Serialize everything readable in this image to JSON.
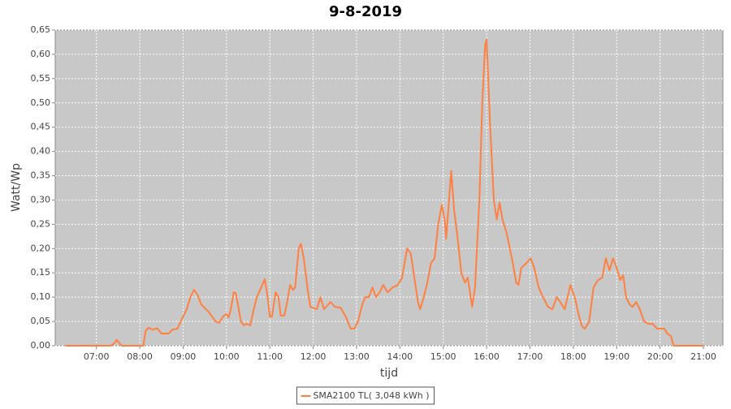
{
  "chart_data": {
    "type": "line",
    "title": "9-8-2019",
    "x_label": "tijd",
    "y_label": "Watt/Wp",
    "x": [
      "06:17",
      "07:20",
      "07:25",
      "07:28",
      "07:32",
      "07:35",
      "08:05",
      "08:08",
      "08:12",
      "08:18",
      "08:24",
      "08:30",
      "08:40",
      "08:45",
      "08:52",
      "09:00",
      "09:05",
      "09:10",
      "09:15",
      "09:20",
      "09:25",
      "09:35",
      "09:45",
      "09:50",
      "09:55",
      "10:00",
      "10:03",
      "10:06",
      "10:10",
      "10:13",
      "10:17",
      "10:20",
      "10:24",
      "10:28",
      "10:33",
      "10:37",
      "10:42",
      "10:48",
      "10:53",
      "10:57",
      "11:00",
      "11:03",
      "11:08",
      "11:12",
      "11:15",
      "11:20",
      "11:24",
      "11:28",
      "11:32",
      "11:35",
      "11:40",
      "11:43",
      "11:47",
      "11:52",
      "11:56",
      "12:00",
      "12:05",
      "12:10",
      "12:15",
      "12:18",
      "12:24",
      "12:30",
      "12:38",
      "12:45",
      "12:52",
      "12:57",
      "13:02",
      "13:08",
      "13:12",
      "13:17",
      "13:22",
      "13:27",
      "13:32",
      "13:37",
      "13:43",
      "13:50",
      "13:57",
      "14:03",
      "14:10",
      "14:15",
      "14:20",
      "14:25",
      "14:28",
      "14:33",
      "14:38",
      "14:43",
      "14:48",
      "14:53",
      "14:58",
      "15:02",
      "15:04",
      "15:08",
      "15:11",
      "15:15",
      "15:20",
      "15:25",
      "15:30",
      "15:34",
      "15:40",
      "15:44",
      "15:50",
      "15:54",
      "15:58",
      "16:00",
      "16:05",
      "16:10",
      "16:14",
      "16:18",
      "16:22",
      "16:28",
      "16:35",
      "16:41",
      "16:44",
      "16:48",
      "16:55",
      "17:01",
      "17:06",
      "17:12",
      "17:18",
      "17:25",
      "17:31",
      "17:37",
      "17:42",
      "17:48",
      "17:56",
      "18:02",
      "18:08",
      "18:12",
      "18:16",
      "18:22",
      "18:28",
      "18:34",
      "18:40",
      "18:45",
      "18:50",
      "18:55",
      "19:00",
      "19:05",
      "19:09",
      "19:13",
      "19:18",
      "19:22",
      "19:27",
      "19:32",
      "19:38",
      "19:44",
      "19:50",
      "19:56",
      "20:06",
      "20:10",
      "20:15",
      "20:19",
      "21:00"
    ],
    "series": [
      {
        "name": "SMA2100 TL( 3,048 kWh )",
        "color": "#ff8040",
        "values": [
          0,
          0,
          0.005,
          0.012,
          0.005,
          0,
          0,
          0.03,
          0.037,
          0.033,
          0.036,
          0.025,
          0.025,
          0.033,
          0.035,
          0.06,
          0.075,
          0.1,
          0.115,
          0.105,
          0.085,
          0.07,
          0.05,
          0.047,
          0.06,
          0.065,
          0.058,
          0.075,
          0.11,
          0.108,
          0.075,
          0.05,
          0.042,
          0.045,
          0.042,
          0.07,
          0.1,
          0.12,
          0.137,
          0.1,
          0.06,
          0.06,
          0.11,
          0.1,
          0.062,
          0.062,
          0.09,
          0.125,
          0.115,
          0.12,
          0.2,
          0.21,
          0.18,
          0.12,
          0.08,
          0.078,
          0.075,
          0.1,
          0.075,
          0.08,
          0.09,
          0.08,
          0.078,
          0.06,
          0.035,
          0.035,
          0.05,
          0.085,
          0.1,
          0.1,
          0.12,
          0.1,
          0.11,
          0.125,
          0.11,
          0.12,
          0.125,
          0.14,
          0.2,
          0.19,
          0.14,
          0.09,
          0.075,
          0.1,
          0.13,
          0.17,
          0.18,
          0.25,
          0.29,
          0.26,
          0.22,
          0.3,
          0.36,
          0.28,
          0.22,
          0.15,
          0.13,
          0.14,
          0.08,
          0.12,
          0.3,
          0.5,
          0.62,
          0.63,
          0.45,
          0.3,
          0.26,
          0.295,
          0.26,
          0.23,
          0.18,
          0.13,
          0.125,
          0.16,
          0.17,
          0.18,
          0.16,
          0.12,
          0.1,
          0.08,
          0.075,
          0.1,
          0.09,
          0.075,
          0.125,
          0.1,
          0.06,
          0.04,
          0.035,
          0.05,
          0.12,
          0.135,
          0.14,
          0.18,
          0.155,
          0.18,
          0.16,
          0.135,
          0.145,
          0.1,
          0.085,
          0.08,
          0.09,
          0.075,
          0.05,
          0.045,
          0.045,
          0.035,
          0.035,
          0.025,
          0.02,
          0,
          0
        ]
      }
    ],
    "xlim": [
      "06:03",
      "21:27"
    ],
    "xticks": [
      "07:00",
      "08:00",
      "09:00",
      "10:00",
      "11:00",
      "12:00",
      "13:00",
      "14:00",
      "15:00",
      "16:00",
      "17:00",
      "18:00",
      "19:00",
      "20:00",
      "21:00"
    ],
    "ylim": [
      0,
      0.65
    ],
    "yticks": [
      {
        "value": 0,
        "label": "0,00"
      },
      {
        "value": 0.05,
        "label": "0,05"
      },
      {
        "value": 0.1,
        "label": "0,10"
      },
      {
        "value": 0.15,
        "label": "0,15"
      },
      {
        "value": 0.2,
        "label": "0,20"
      },
      {
        "value": 0.25,
        "label": "0,25"
      },
      {
        "value": 0.3,
        "label": "0,30"
      },
      {
        "value": 0.35,
        "label": "0,35"
      },
      {
        "value": 0.4,
        "label": "0,40"
      },
      {
        "value": 0.45,
        "label": "0,45"
      },
      {
        "value": 0.5,
        "label": "0,50"
      },
      {
        "value": 0.55,
        "label": "0,55"
      },
      {
        "value": 0.6,
        "label": "0,60"
      },
      {
        "value": 0.65,
        "label": "0,65"
      }
    ],
    "grid": true,
    "legend": "bottom"
  }
}
